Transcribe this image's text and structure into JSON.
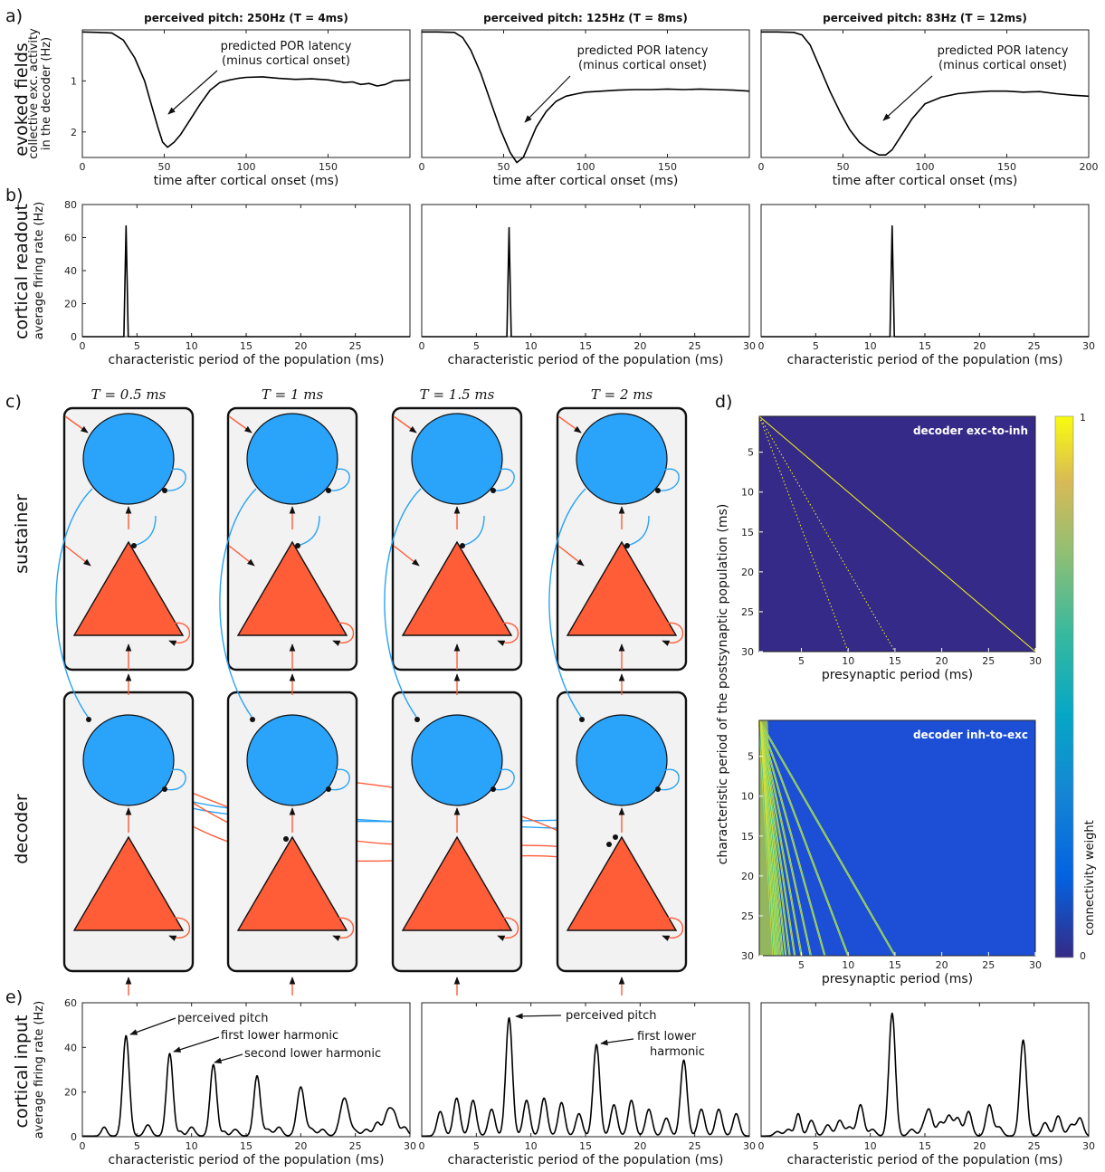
{
  "panel_labels": {
    "a": "a)",
    "b": "b)",
    "c": "c)",
    "d": "d)",
    "e": "e)"
  },
  "row_labels": {
    "evoked": "evoked fields",
    "readout": "cortical readout",
    "sustainer": "sustainer",
    "decoder": "decoder",
    "input": "cortical input"
  },
  "annotations": {
    "por_line1": "predicted POR latency",
    "por_line2": "(minus cortical onset)",
    "perceived_pitch": "perceived pitch",
    "first_lower_harmonic": "first lower harmonic",
    "second_lower_harmonic": "second lower harmonic",
    "first_lower": "first lower",
    "harmonic": "harmonic"
  },
  "diagram": {
    "columns": [
      "T = 0.5 ms",
      "T = 1 ms",
      "T = 1.5 ms",
      "T = 2 ms"
    ],
    "colors": {
      "excitatory": "#ff5c38",
      "inhibitory": "#29a3f5",
      "box": "#f2f2f2"
    }
  },
  "colorbar": {
    "label": "connectivity weight",
    "min": "0",
    "max": "1"
  },
  "chart_data": [
    {
      "id": "a1",
      "type": "line",
      "title": "perceived pitch: 250Hz (T = 4ms)",
      "xlabel": "time after cortical onset (ms)",
      "ylabel": [
        "collective exc. activity",
        "in the decoder (Hz)"
      ],
      "xlim": [
        0,
        200
      ],
      "ylim": [
        0,
        2.5
      ],
      "y_inverted": true,
      "x_ticks": [
        0,
        50,
        100,
        150
      ],
      "y_ticks": [
        1,
        2
      ],
      "series": [
        {
          "x": [
            0,
            10,
            18,
            25,
            32,
            38,
            42,
            46,
            49,
            52,
            56,
            60,
            66,
            72,
            78,
            84,
            90,
            95,
            100,
            110,
            120,
            130,
            140,
            150,
            160,
            165,
            170,
            175,
            180,
            185,
            190,
            195,
            200
          ],
          "values": [
            0.04,
            0.05,
            0.06,
            0.2,
            0.55,
            1.0,
            1.45,
            1.9,
            2.2,
            2.3,
            2.2,
            2.05,
            1.75,
            1.45,
            1.18,
            1.03,
            0.98,
            0.95,
            0.93,
            0.92,
            0.95,
            0.97,
            0.96,
            0.98,
            1.03,
            1.02,
            1.07,
            1.05,
            1.1,
            1.07,
            1.0,
            0.99,
            0.98
          ]
        }
      ]
    },
    {
      "id": "a2",
      "type": "line",
      "title": "perceived pitch: 125Hz (T = 8ms)",
      "xlabel": "time after cortical onset (ms)",
      "xlim": [
        0,
        200
      ],
      "ylim": [
        0,
        2.5
      ],
      "y_inverted": true,
      "x_ticks": [
        0,
        50,
        100,
        150
      ],
      "series": [
        {
          "x": [
            0,
            10,
            20,
            25,
            30,
            36,
            42,
            48,
            54,
            58,
            62,
            66,
            70,
            76,
            82,
            88,
            95,
            100,
            110,
            120,
            130,
            140,
            150,
            160,
            170,
            180,
            190,
            200
          ],
          "values": [
            0.04,
            0.04,
            0.05,
            0.15,
            0.4,
            0.85,
            1.4,
            1.95,
            2.4,
            2.6,
            2.5,
            2.2,
            1.9,
            1.6,
            1.4,
            1.3,
            1.25,
            1.22,
            1.2,
            1.18,
            1.17,
            1.17,
            1.16,
            1.17,
            1.16,
            1.17,
            1.18,
            1.2
          ]
        }
      ]
    },
    {
      "id": "a3",
      "type": "line",
      "title": "perceived pitch: 83Hz (T = 12ms)",
      "xlabel": "time after cortical onset (ms)",
      "xlim": [
        0,
        200
      ],
      "ylim": [
        0,
        2.5
      ],
      "y_inverted": true,
      "x_ticks": [
        0,
        50,
        100,
        150,
        200
      ],
      "series": [
        {
          "x": [
            0,
            10,
            20,
            25,
            30,
            36,
            42,
            48,
            54,
            60,
            66,
            72,
            76,
            80,
            86,
            92,
            100,
            110,
            120,
            130,
            140,
            150,
            160,
            170,
            180,
            190,
            200
          ],
          "values": [
            0.04,
            0.04,
            0.05,
            0.1,
            0.3,
            0.75,
            1.2,
            1.6,
            1.95,
            2.2,
            2.35,
            2.45,
            2.45,
            2.35,
            2.05,
            1.75,
            1.45,
            1.32,
            1.25,
            1.22,
            1.2,
            1.2,
            1.22,
            1.21,
            1.25,
            1.28,
            1.3
          ]
        }
      ]
    },
    {
      "id": "b1",
      "type": "line",
      "ylabel": "average firing rate (Hz)",
      "xlabel": "characteristic period of the population (ms)",
      "xlim": [
        0,
        30
      ],
      "ylim": [
        0,
        80
      ],
      "x_ticks": [
        0,
        5,
        10,
        15,
        20,
        25
      ],
      "y_ticks": [
        0,
        20,
        40,
        60,
        80
      ],
      "series": [
        {
          "x": [
            0,
            3.8,
            4.0,
            4.2,
            30
          ],
          "values": [
            0,
            0,
            67,
            0,
            0
          ]
        }
      ]
    },
    {
      "id": "b2",
      "type": "line",
      "xlabel": "characteristic period of the population (ms)",
      "xlim": [
        0,
        30
      ],
      "ylim": [
        0,
        80
      ],
      "x_ticks": [
        0,
        5,
        10,
        15,
        20,
        25,
        30
      ],
      "series": [
        {
          "x": [
            0,
            7.8,
            8.0,
            8.2,
            30
          ],
          "values": [
            0,
            0,
            66,
            0,
            0
          ]
        }
      ]
    },
    {
      "id": "b3",
      "type": "line",
      "xlabel": "characteristic period of the population (ms)",
      "xlim": [
        0,
        30
      ],
      "ylim": [
        0,
        80
      ],
      "x_ticks": [
        0,
        5,
        10,
        15,
        20,
        25,
        30
      ],
      "series": [
        {
          "x": [
            0,
            11.8,
            12.0,
            12.2,
            30
          ],
          "values": [
            0,
            0,
            67,
            0,
            0
          ]
        }
      ]
    },
    {
      "id": "d1",
      "type": "heatmap",
      "title": "decoder exc-to-inh",
      "xlabel": "presynaptic period (ms)",
      "xlim": [
        0.5,
        30
      ],
      "ylim": [
        0.5,
        30
      ],
      "x_ticks": [
        5,
        10,
        15,
        20,
        25,
        30
      ],
      "y_ticks": [
        5,
        10,
        15,
        20,
        25,
        30
      ],
      "background_value": 0.02,
      "lines": [
        {
          "slope": 1,
          "style": "solid"
        },
        {
          "slope": 0.5,
          "style": "dotted"
        },
        {
          "slope": 0.333,
          "style": "dotted"
        }
      ]
    },
    {
      "id": "d2",
      "type": "heatmap",
      "title": "decoder inh-to-exc",
      "xlabel": "presynaptic period (ms)",
      "ylabel": "characteristic period of the postsynaptic population (ms)",
      "xlim": [
        0.5,
        30
      ],
      "ylim": [
        0.5,
        30
      ],
      "x_ticks": [
        5,
        10,
        15,
        20,
        25,
        30
      ],
      "y_ticks": [
        5,
        10,
        15,
        20,
        25,
        30
      ],
      "background_value": 0.3,
      "lines": [
        {
          "slope": 0.5
        },
        {
          "slope": 0.333
        },
        {
          "slope": 0.25
        },
        {
          "slope": 0.2
        },
        {
          "slope": 0.167
        },
        {
          "slope": 0.143
        },
        {
          "slope": 0.125
        },
        {
          "slope": 0.111
        },
        {
          "slope": 0.1
        },
        {
          "slope": 0.091
        },
        {
          "slope": 0.083
        },
        {
          "slope": 0.077
        },
        {
          "slope": 0.071
        },
        {
          "slope": 0.067
        }
      ]
    },
    {
      "id": "e1",
      "type": "line",
      "ylabel": "average firing rate (Hz)",
      "xlabel": "characteristic period of the population (ms)",
      "xlim": [
        0,
        30
      ],
      "ylim": [
        0,
        60
      ],
      "x_ticks": [
        0,
        5,
        10,
        15,
        20,
        25,
        30
      ],
      "y_ticks": [
        0,
        20,
        40,
        60
      ],
      "baseline": 0.3,
      "peaks": [
        [
          2,
          4,
          0.25
        ],
        [
          4,
          45,
          0.3
        ],
        [
          6,
          5,
          0.3
        ],
        [
          8,
          37,
          0.3
        ],
        [
          9,
          2,
          0.2
        ],
        [
          10,
          4,
          0.3
        ],
        [
          12,
          32,
          0.3
        ],
        [
          13,
          2,
          0.2
        ],
        [
          14,
          3,
          0.3
        ],
        [
          16,
          27,
          0.3
        ],
        [
          17,
          3,
          0.3
        ],
        [
          18,
          4,
          0.3
        ],
        [
          20,
          22,
          0.35
        ],
        [
          21,
          3,
          0.3
        ],
        [
          22,
          3,
          0.3
        ],
        [
          24,
          17,
          0.4
        ],
        [
          25,
          2,
          0.3
        ],
        [
          26,
          3,
          0.3
        ],
        [
          27,
          6,
          0.3
        ],
        [
          28,
          11,
          0.35
        ],
        [
          28.6,
          8,
          0.3
        ],
        [
          29.5,
          4,
          0.3
        ]
      ]
    },
    {
      "id": "e2",
      "type": "line",
      "xlabel": "characteristic period of the population (ms)",
      "xlim": [
        0,
        30
      ],
      "ylim": [
        0,
        60
      ],
      "x_ticks": [
        0,
        5,
        10,
        15,
        20,
        25,
        30
      ],
      "baseline": 0.3,
      "peaks": [
        [
          1.7,
          11,
          0.3
        ],
        [
          3.2,
          17,
          0.3
        ],
        [
          4.7,
          16,
          0.3
        ],
        [
          6.4,
          12,
          0.3
        ],
        [
          8,
          53,
          0.3
        ],
        [
          9.6,
          16,
          0.3
        ],
        [
          11.2,
          17,
          0.3
        ],
        [
          12.8,
          15,
          0.3
        ],
        [
          14.4,
          10,
          0.3
        ],
        [
          16,
          41,
          0.3
        ],
        [
          17.6,
          14,
          0.3
        ],
        [
          19.2,
          16,
          0.3
        ],
        [
          20.8,
          12,
          0.3
        ],
        [
          22.4,
          8,
          0.3
        ],
        [
          24,
          34,
          0.3
        ],
        [
          25.6,
          12,
          0.3
        ],
        [
          27.2,
          12,
          0.3
        ],
        [
          28.8,
          10,
          0.3
        ]
      ]
    },
    {
      "id": "e3",
      "type": "line",
      "xlabel": "characteristic period of the population (ms)",
      "xlim": [
        0,
        30
      ],
      "ylim": [
        0,
        60
      ],
      "x_ticks": [
        0,
        5,
        10,
        15,
        20,
        25,
        30
      ],
      "baseline": 0.3,
      "peaks": [
        [
          1.5,
          2,
          0.3
        ],
        [
          2.5,
          3,
          0.3
        ],
        [
          3.4,
          10,
          0.25
        ],
        [
          4.6,
          7,
          0.3
        ],
        [
          6.1,
          5,
          0.3
        ],
        [
          7.2,
          7,
          0.3
        ],
        [
          8.1,
          4,
          0.3
        ],
        [
          9.1,
          14,
          0.3
        ],
        [
          10.2,
          3,
          0.3
        ],
        [
          12,
          55,
          0.3
        ],
        [
          13.8,
          3,
          0.3
        ],
        [
          14.9,
          4,
          0.3
        ],
        [
          15.4,
          11,
          0.3
        ],
        [
          16.4,
          6,
          0.3
        ],
        [
          17.2,
          9,
          0.3
        ],
        [
          18,
          8,
          0.3
        ],
        [
          19,
          11,
          0.3
        ],
        [
          20.9,
          14,
          0.3
        ],
        [
          21.8,
          4,
          0.3
        ],
        [
          24,
          43,
          0.3
        ],
        [
          26,
          6,
          0.3
        ],
        [
          27.2,
          9,
          0.3
        ],
        [
          28.4,
          5,
          0.3
        ],
        [
          29.2,
          8,
          0.3
        ]
      ]
    }
  ]
}
